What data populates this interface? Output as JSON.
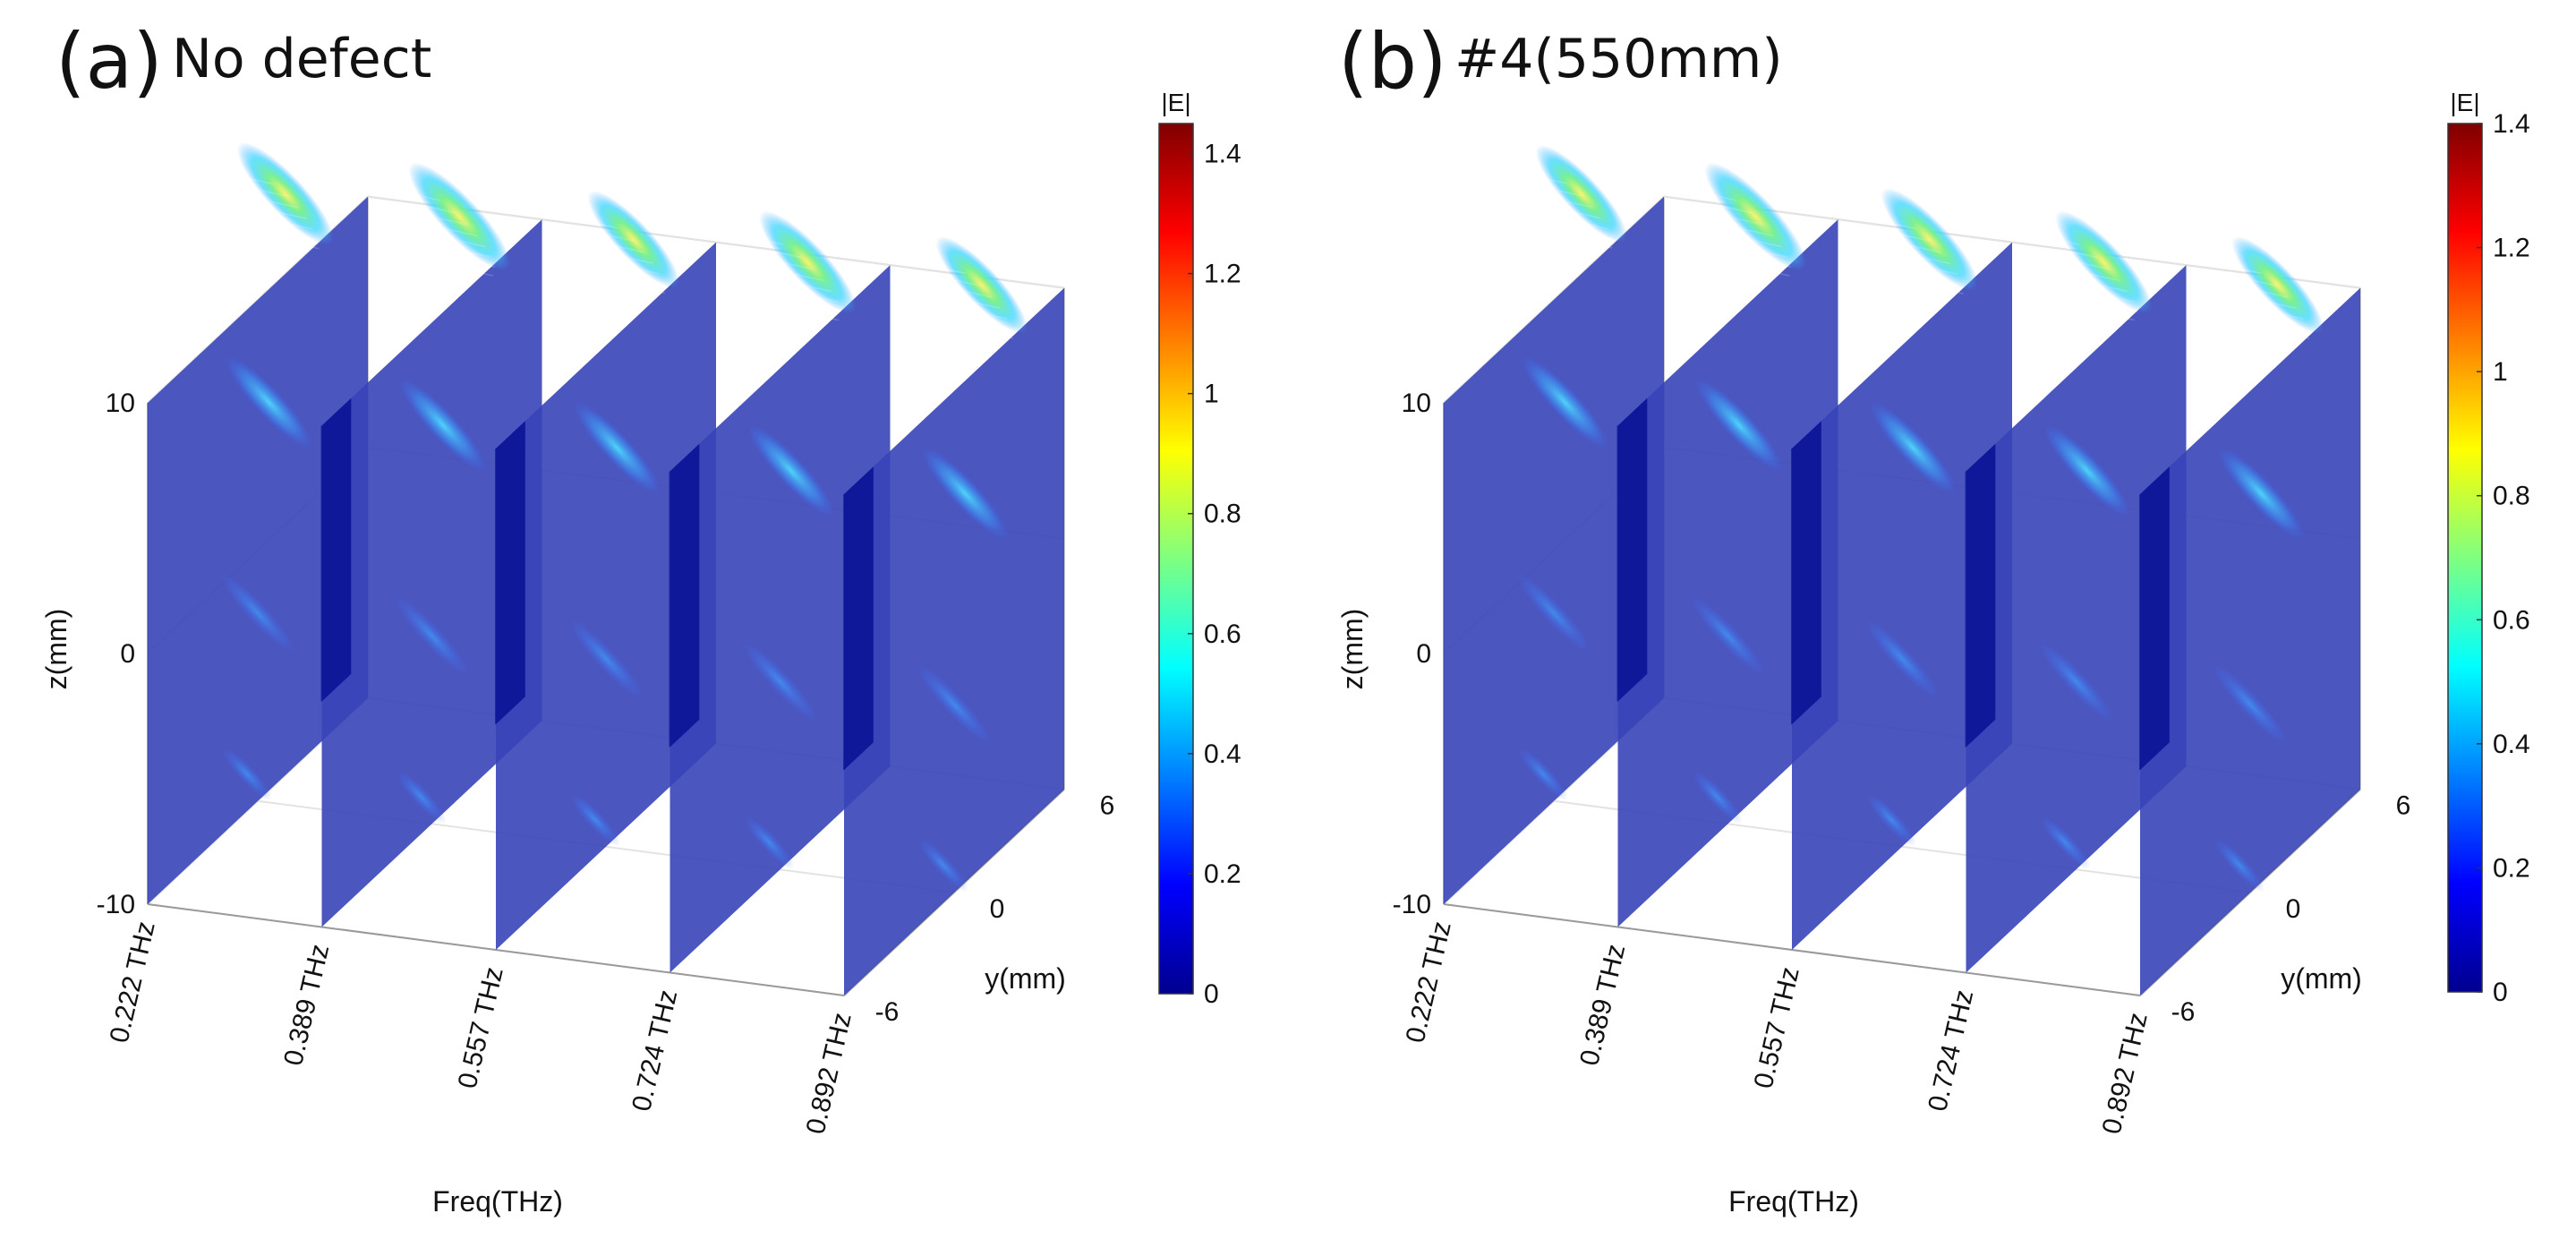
{
  "figure": {
    "panels": [
      {
        "letter": "(a)",
        "title": "No defect"
      },
      {
        "letter": "(b)",
        "title": "#4(550mm)"
      }
    ]
  },
  "chart_data": [
    {
      "type": "heatmap",
      "subtype": "3d-slices",
      "panel": "(a)",
      "title": "No defect",
      "xlabel": "Freq(THz)",
      "ylabel": "y(mm)",
      "zlabel": "z(mm)",
      "x_ticks": [
        "0.222 THz",
        "0.389 THz",
        "0.557 THz",
        "0.724 THz",
        "0.892 THz"
      ],
      "y_ticks": [
        "-6",
        "0",
        "6"
      ],
      "z_ticks": [
        "-10",
        "0",
        "10"
      ],
      "ylim": [
        -6,
        6
      ],
      "zlim": [
        -10,
        10
      ],
      "colorbar": {
        "label": "|E|",
        "ticks": [
          "0",
          "0.2",
          "0.4",
          "0.6",
          "0.8",
          "1",
          "1.2",
          "1.4"
        ],
        "range": [
          0,
          1.45
        ],
        "colormap": "jet"
      },
      "slices": [
        {
          "freq": "0.222 THz",
          "peak": 0.95
        },
        {
          "freq": "0.389 THz",
          "peak": 1.0
        },
        {
          "freq": "0.557 THz",
          "peak": 0.9
        },
        {
          "freq": "0.724 THz",
          "peak": 0.95
        },
        {
          "freq": "0.892 THz",
          "peak": 0.9
        }
      ]
    },
    {
      "type": "heatmap",
      "subtype": "3d-slices",
      "panel": "(b)",
      "title": "#4(550mm)",
      "xlabel": "Freq(THz)",
      "ylabel": "y(mm)",
      "zlabel": "z(mm)",
      "x_ticks": [
        "0.222 THz",
        "0.389 THz",
        "0.557 THz",
        "0.724 THz",
        "0.892 THz"
      ],
      "y_ticks": [
        "-6",
        "0",
        "6"
      ],
      "z_ticks": [
        "-10",
        "0",
        "10"
      ],
      "ylim": [
        -6,
        6
      ],
      "zlim": [
        -10,
        10
      ],
      "colorbar": {
        "label": "|E|",
        "ticks": [
          "0",
          "0.2",
          "0.4",
          "0.6",
          "0.8",
          "1",
          "1.2",
          "1.4"
        ],
        "range": [
          0,
          1.4
        ],
        "colormap": "jet"
      },
      "slices": [
        {
          "freq": "0.222 THz",
          "peak": 0.9
        },
        {
          "freq": "0.389 THz",
          "peak": 1.0
        },
        {
          "freq": "0.557 THz",
          "peak": 0.95
        },
        {
          "freq": "0.724 THz",
          "peak": 0.95
        },
        {
          "freq": "0.892 THz",
          "peak": 0.9
        }
      ]
    }
  ]
}
